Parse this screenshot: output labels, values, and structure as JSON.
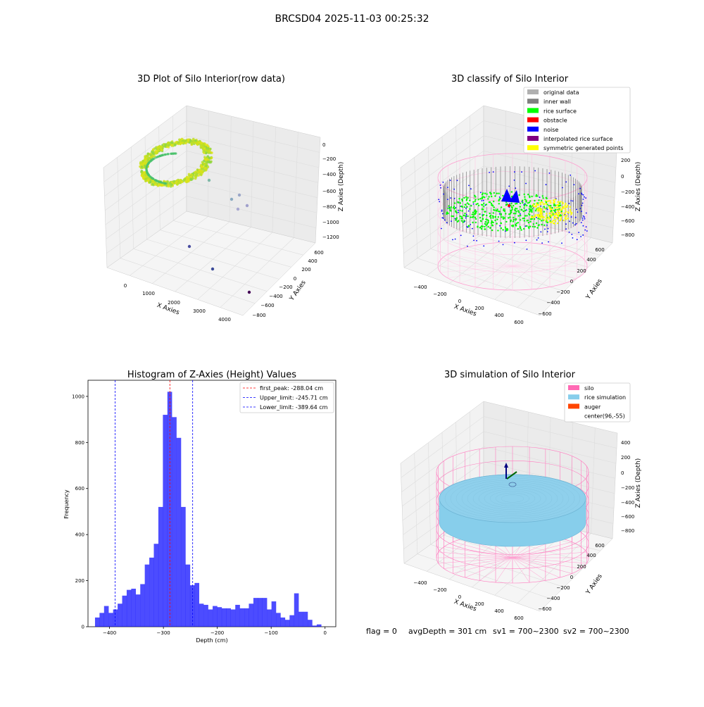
{
  "figure": {
    "suptitle": "BRCSD04 2025-11-03 00:25:32",
    "footer": {
      "flag": "flag = 0",
      "avg": "avgDepth = 301 cm",
      "sv1": "sv1 = 700~2300",
      "sv2": "sv2 = 700~2300"
    }
  },
  "chart_data": [
    {
      "type": "scatter",
      "title": "3D Plot of Silo Interior(row data)",
      "xlabel": "X Axies",
      "ylabel": "Y Axies",
      "zlabel": "Z Axies (Depth)",
      "x_ticks": [
        "0",
        "1000",
        "2000",
        "3000",
        "4000"
      ],
      "y_ticks": [
        "600",
        "400",
        "200",
        "0",
        "−200",
        "−400",
        "−600",
        "−800"
      ],
      "z_ticks": [
        "0",
        "−200",
        "−400",
        "−600",
        "−800",
        "−1000",
        "−1200"
      ],
      "colormap": [
        "#fde725",
        "#7ad151",
        "#22a884",
        "#2a788e",
        "#414487",
        "#440154"
      ],
      "outliers": [
        {
          "x": 1200,
          "y": 100,
          "z": -650
        },
        {
          "x": 2500,
          "y": 300,
          "z": -750
        },
        {
          "x": 2700,
          "y": 100,
          "z": -800
        },
        {
          "x": 2900,
          "y": 0,
          "z": -820
        },
        {
          "x": 3000,
          "y": -100,
          "z": -780
        },
        {
          "x": 1800,
          "y": -300,
          "z": -1100
        },
        {
          "x": 3100,
          "y": -500,
          "z": -1150
        },
        {
          "x": 4000,
          "y": -800,
          "z": -1200
        }
      ]
    },
    {
      "type": "scatter",
      "title": "3D classify of Silo Interior",
      "xlabel": "X Axies",
      "ylabel": "Y Axies",
      "zlabel": "Z Axies (Depth)",
      "x_ticks": [
        "−400",
        "−200",
        "0",
        "200",
        "400",
        "600"
      ],
      "y_ticks": [
        "600",
        "400",
        "200",
        "0",
        "−200",
        "−400",
        "−600"
      ],
      "z_ticks": [
        "200",
        "0",
        "−200",
        "−400",
        "−600",
        "−800"
      ],
      "legend": [
        {
          "label": "original data",
          "color": "#b0b0b0"
        },
        {
          "label": "inner wall",
          "color": "#808080"
        },
        {
          "label": "rice surface",
          "color": "#00ff00"
        },
        {
          "label": "obstacle",
          "color": "#ff0000"
        },
        {
          "label": "noise",
          "color": "#0000ff"
        },
        {
          "label": "interpolated rice surface",
          "color": "#800080"
        },
        {
          "label": "symmetric generated points",
          "color": "#ffff00"
        }
      ]
    },
    {
      "type": "bar",
      "title": "Histogram of Z-Axies (Height) Values",
      "xlabel": "Depth (cm)",
      "ylabel": "Frequency",
      "xlim": [
        -440,
        20
      ],
      "ylim": [
        0,
        1070
      ],
      "x_ticks": [
        -400,
        -300,
        -200,
        -100,
        0
      ],
      "x_tick_labels": [
        "−400",
        "−300",
        "−200",
        "−100",
        "0"
      ],
      "y_ticks": [
        0,
        200,
        400,
        600,
        800,
        1000
      ],
      "y_tick_labels": [
        "0",
        "200",
        "400",
        "600",
        "800",
        "1000"
      ],
      "bar_color": "#0000ff",
      "bin_start": -427,
      "bin_width": 8.4,
      "values": [
        40,
        60,
        90,
        60,
        75,
        100,
        135,
        160,
        165,
        140,
        185,
        270,
        300,
        360,
        520,
        920,
        1020,
        910,
        820,
        520,
        270,
        180,
        190,
        100,
        95,
        75,
        90,
        85,
        80,
        80,
        75,
        95,
        80,
        80,
        100,
        125,
        125,
        125,
        75,
        110,
        60,
        40,
        30,
        50,
        145,
        65,
        65,
        30,
        5,
        10
      ],
      "vlines": [
        {
          "x": -288.04,
          "color": "#ff0000",
          "label": "first_peak: -288.04 cm"
        },
        {
          "x": -245.71,
          "color": "#0000ff",
          "label": "Upper_limit: -245.71 cm"
        },
        {
          "x": -389.64,
          "color": "#0000ff",
          "label": "Lower_limit: -389.64 cm"
        }
      ]
    },
    {
      "type": "scatter",
      "title": "3D simulation of Silo Interior",
      "xlabel": "X Axies",
      "ylabel": "Y Axies",
      "zlabel": "Z Axies (Depth)",
      "x_ticks": [
        "−400",
        "−200",
        "0",
        "200",
        "400",
        "600"
      ],
      "y_ticks": [
        "600",
        "400",
        "200",
        "0",
        "−200",
        "−400",
        "−600"
      ],
      "z_ticks": [
        "400",
        "200",
        "0",
        "−200",
        "−400",
        "−600",
        "−800"
      ],
      "legend": [
        {
          "label": "silo",
          "color": "#ff69b4"
        },
        {
          "label": "rice simulation",
          "color": "#87ceeb"
        },
        {
          "label": "auger",
          "color": "#ff4500"
        },
        {
          "label": "center(96,-55)",
          "color": null
        }
      ]
    }
  ]
}
